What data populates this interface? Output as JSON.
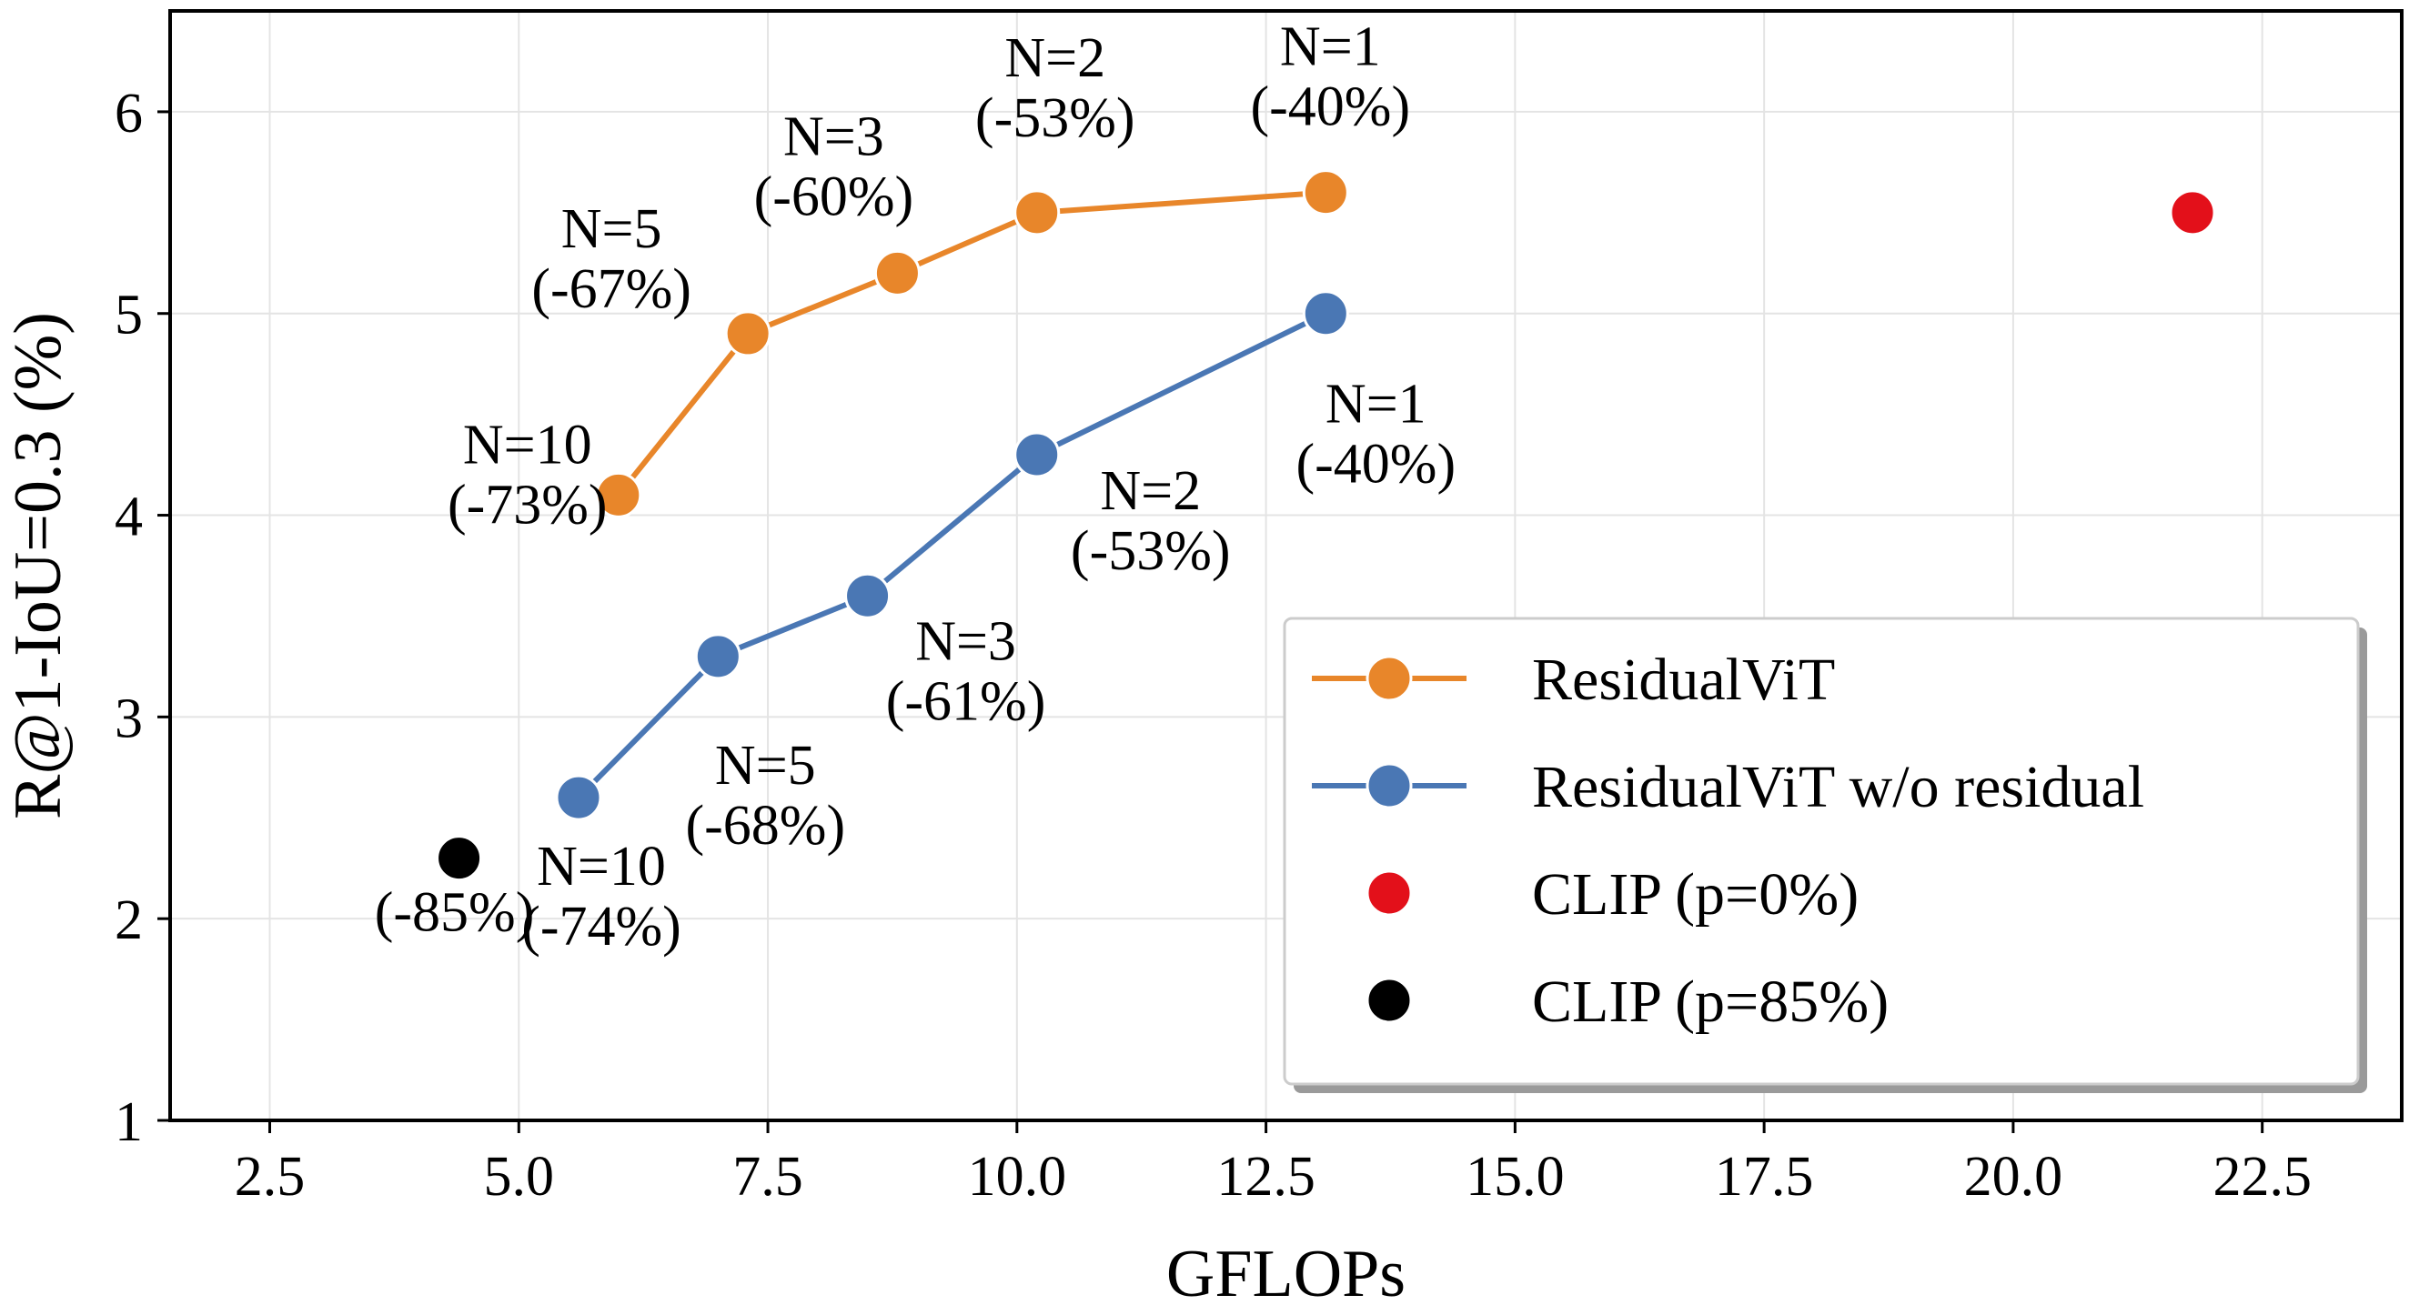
{
  "chart_data": {
    "type": "line",
    "xlabel": "GFLOPs",
    "ylabel": "R@1-IoU=0.3 (%)",
    "xlim": [
      1.5,
      23.9
    ],
    "ylim": [
      1,
      6.5
    ],
    "xticks": [
      "2.5",
      "5.0",
      "7.5",
      "10.0",
      "12.5",
      "15.0",
      "17.5",
      "20.0",
      "22.5"
    ],
    "yticks": [
      "1",
      "2",
      "3",
      "4",
      "5",
      "6"
    ],
    "grid": true,
    "legend_position": "bottom-right",
    "series": [
      {
        "name": "ResidualViT",
        "color": "#e8862a",
        "line": true,
        "x": [
          6.0,
          7.3,
          8.8,
          10.2,
          13.1
        ],
        "y": [
          4.1,
          4.9,
          5.2,
          5.5,
          5.6
        ],
        "annotations": [
          {
            "lines": [
              "N=10",
              "(-73%)"
            ]
          },
          {
            "lines": [
              "N=5",
              "(-67%)"
            ]
          },
          {
            "lines": [
              "N=3",
              "(-60%)"
            ]
          },
          {
            "lines": [
              "N=2",
              "(-53%)"
            ]
          },
          {
            "lines": [
              "N=1",
              "(-40%)"
            ]
          }
        ]
      },
      {
        "name": "ResidualViT w/o residual",
        "color": "#4a77b4",
        "line": true,
        "x": [
          5.6,
          7.0,
          8.5,
          10.2,
          13.1
        ],
        "y": [
          2.6,
          3.3,
          3.6,
          4.3,
          5.0
        ],
        "annotations": [
          {
            "lines": [
              "N=10",
              "(-74%)"
            ]
          },
          {
            "lines": [
              "N=5",
              "(-68%)"
            ]
          },
          {
            "lines": [
              "N=3",
              "(-61%)"
            ]
          },
          {
            "lines": [
              "N=2",
              "(-53%)"
            ]
          },
          {
            "lines": [
              "N=1",
              "(-40%)"
            ]
          }
        ]
      },
      {
        "name": "CLIP (p=0%)",
        "color": "#e3101a",
        "line": false,
        "x": [
          21.8
        ],
        "y": [
          5.5
        ],
        "annotations": [
          null
        ]
      },
      {
        "name": "CLIP (p=85%)",
        "color": "#000000",
        "line": false,
        "x": [
          4.4
        ],
        "y": [
          2.3
        ],
        "annotations": [
          {
            "lines": [
              "(-85%)"
            ]
          }
        ]
      }
    ]
  }
}
